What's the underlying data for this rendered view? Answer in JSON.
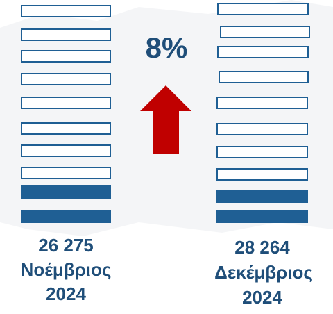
{
  "change": "8%",
  "left": {
    "value": "26 275",
    "month": "Νοέμβριος",
    "year": "2024"
  },
  "right": {
    "value": "28 264",
    "month": "Δεκέμβριος",
    "year": "2024"
  }
}
